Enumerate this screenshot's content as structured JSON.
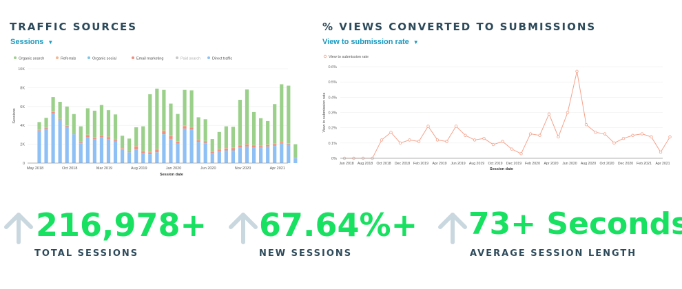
{
  "colors": {
    "title": "#2d4a5a",
    "link": "#1a9ac0",
    "kpi": "#18e060",
    "arrow": "#c9d7df",
    "organic_search": "#9bd08a",
    "referrals": "#f6b48f",
    "organic_social": "#7ec5e6",
    "email_marketing": "#f08e7e",
    "paid_search": "#c8c8c8",
    "direct_traffic": "#8ec0f5",
    "conversion_line": "#f4a28b"
  },
  "traffic": {
    "title": "TRAFFIC SOURCES",
    "dropdown": "Sessions",
    "chart_data": {
      "type": "bar",
      "stacked": true,
      "xlabel": "Session date",
      "ylabel": "Sessions",
      "ylim": [
        0,
        10000
      ],
      "yticks": [
        "0",
        "2K",
        "4K",
        "6K",
        "8K",
        "10K"
      ],
      "xtick_labels": [
        "May 2018",
        "Oct 2018",
        "Mar 2019",
        "Aug 2019",
        "Jan 2020",
        "Jun 2020",
        "Nov 2020",
        "Apr 2021"
      ],
      "xtick_index": [
        0,
        5,
        10,
        15,
        20,
        25,
        30,
        35
      ],
      "legend": [
        "Organic search",
        "Referrals",
        "Organic social",
        "Email marketing",
        "Paid search",
        "Direct traffic"
      ],
      "legend_position": "top-left",
      "series": [
        {
          "name": "Direct traffic",
          "values": [
            3400,
            3600,
            5200,
            4500,
            3800,
            3000,
            2100,
            2700,
            2500,
            2700,
            2500,
            2300,
            1400,
            1100,
            1400,
            1000,
            900,
            1100,
            3000,
            2500,
            2000,
            3600,
            3500,
            2200,
            2100,
            1000,
            1200,
            1300,
            1300,
            1600,
            1700,
            1600,
            1600,
            1700,
            1800,
            2000,
            1900,
            500
          ]
        },
        {
          "name": "Organic social",
          "values": [
            50,
            50,
            60,
            60,
            60,
            60,
            50,
            60,
            60,
            60,
            60,
            60,
            50,
            50,
            50,
            50,
            50,
            50,
            60,
            60,
            60,
            60,
            60,
            60,
            50,
            50,
            50,
            50,
            50,
            60,
            60,
            60,
            60,
            60,
            60,
            60,
            60,
            40
          ]
        },
        {
          "name": "Email marketing",
          "values": [
            50,
            100,
            150,
            100,
            100,
            100,
            100,
            200,
            150,
            150,
            200,
            150,
            100,
            100,
            300,
            200,
            200,
            300,
            350,
            300,
            200,
            250,
            200,
            150,
            150,
            150,
            200,
            200,
            250,
            200,
            200,
            200,
            150,
            150,
            150,
            150,
            100,
            50
          ]
        },
        {
          "name": "Referrals",
          "values": [
            50,
            50,
            100,
            50,
            50,
            50,
            50,
            50,
            50,
            50,
            50,
            50,
            50,
            50,
            50,
            50,
            50,
            50,
            50,
            50,
            50,
            50,
            50,
            50,
            50,
            50,
            50,
            50,
            50,
            50,
            50,
            50,
            50,
            50,
            50,
            50,
            50,
            30
          ]
        },
        {
          "name": "Organic search",
          "values": [
            800,
            1000,
            1490,
            1790,
            1990,
            1990,
            1600,
            2800,
            2800,
            3200,
            2800,
            2600,
            1300,
            1300,
            2000,
            2600,
            6100,
            6400,
            4300,
            3400,
            2900,
            3800,
            3900,
            2400,
            2300,
            1300,
            1800,
            2300,
            2200,
            4800,
            5800,
            3500,
            2900,
            2500,
            4200,
            6100,
            6100,
            1380
          ]
        }
      ]
    }
  },
  "conversion": {
    "title": "% VIEWS CONVERTED TO SUBMISSIONS",
    "dropdown": "View to submission rate",
    "chart_data": {
      "type": "line",
      "xlabel": "Session date",
      "ylabel": "View to submission rate",
      "ylim": [
        0,
        0.6
      ],
      "yticks": [
        "0%",
        "0.1%",
        "0.2%",
        "0.3%",
        "0.4%",
        "0.5%",
        "0.6%"
      ],
      "xtick_labels": [
        "Jun 2018",
        "Aug 2018",
        "Oct 2018",
        "Dec 2018",
        "Feb 2019",
        "Apr 2019",
        "Jun 2019",
        "Aug 2019",
        "Oct 2019",
        "Dec 2019",
        "Feb 2020",
        "Apr 2020",
        "Jun 2020",
        "Aug 2020",
        "Oct 2020",
        "Dec 2020",
        "Feb 2021",
        "Apr 2021"
      ],
      "legend": [
        "View to submission rate"
      ],
      "legend_position": "top-left",
      "series": [
        {
          "name": "View to submission rate",
          "values": [
            0,
            0,
            0,
            0,
            0.12,
            0.17,
            0.1,
            0.12,
            0.11,
            0.21,
            0.12,
            0.11,
            0.21,
            0.15,
            0.12,
            0.13,
            0.09,
            0.11,
            0.06,
            0.03,
            0.16,
            0.15,
            0.29,
            0.14,
            0.3,
            0.57,
            0.22,
            0.17,
            0.16,
            0.1,
            0.13,
            0.15,
            0.16,
            0.14,
            0.04,
            0.14
          ]
        }
      ]
    }
  },
  "kpis": [
    {
      "value": "216,978+",
      "label": "TOTAL SESSIONS",
      "icon": "up-arrow-icon"
    },
    {
      "value": "67.64%+",
      "label": "NEW SESSIONS",
      "icon": "up-arrow-icon"
    },
    {
      "value": "73+ Seconds",
      "label": "AVERAGE SESSION LENGTH",
      "icon": "up-arrow-icon"
    }
  ]
}
